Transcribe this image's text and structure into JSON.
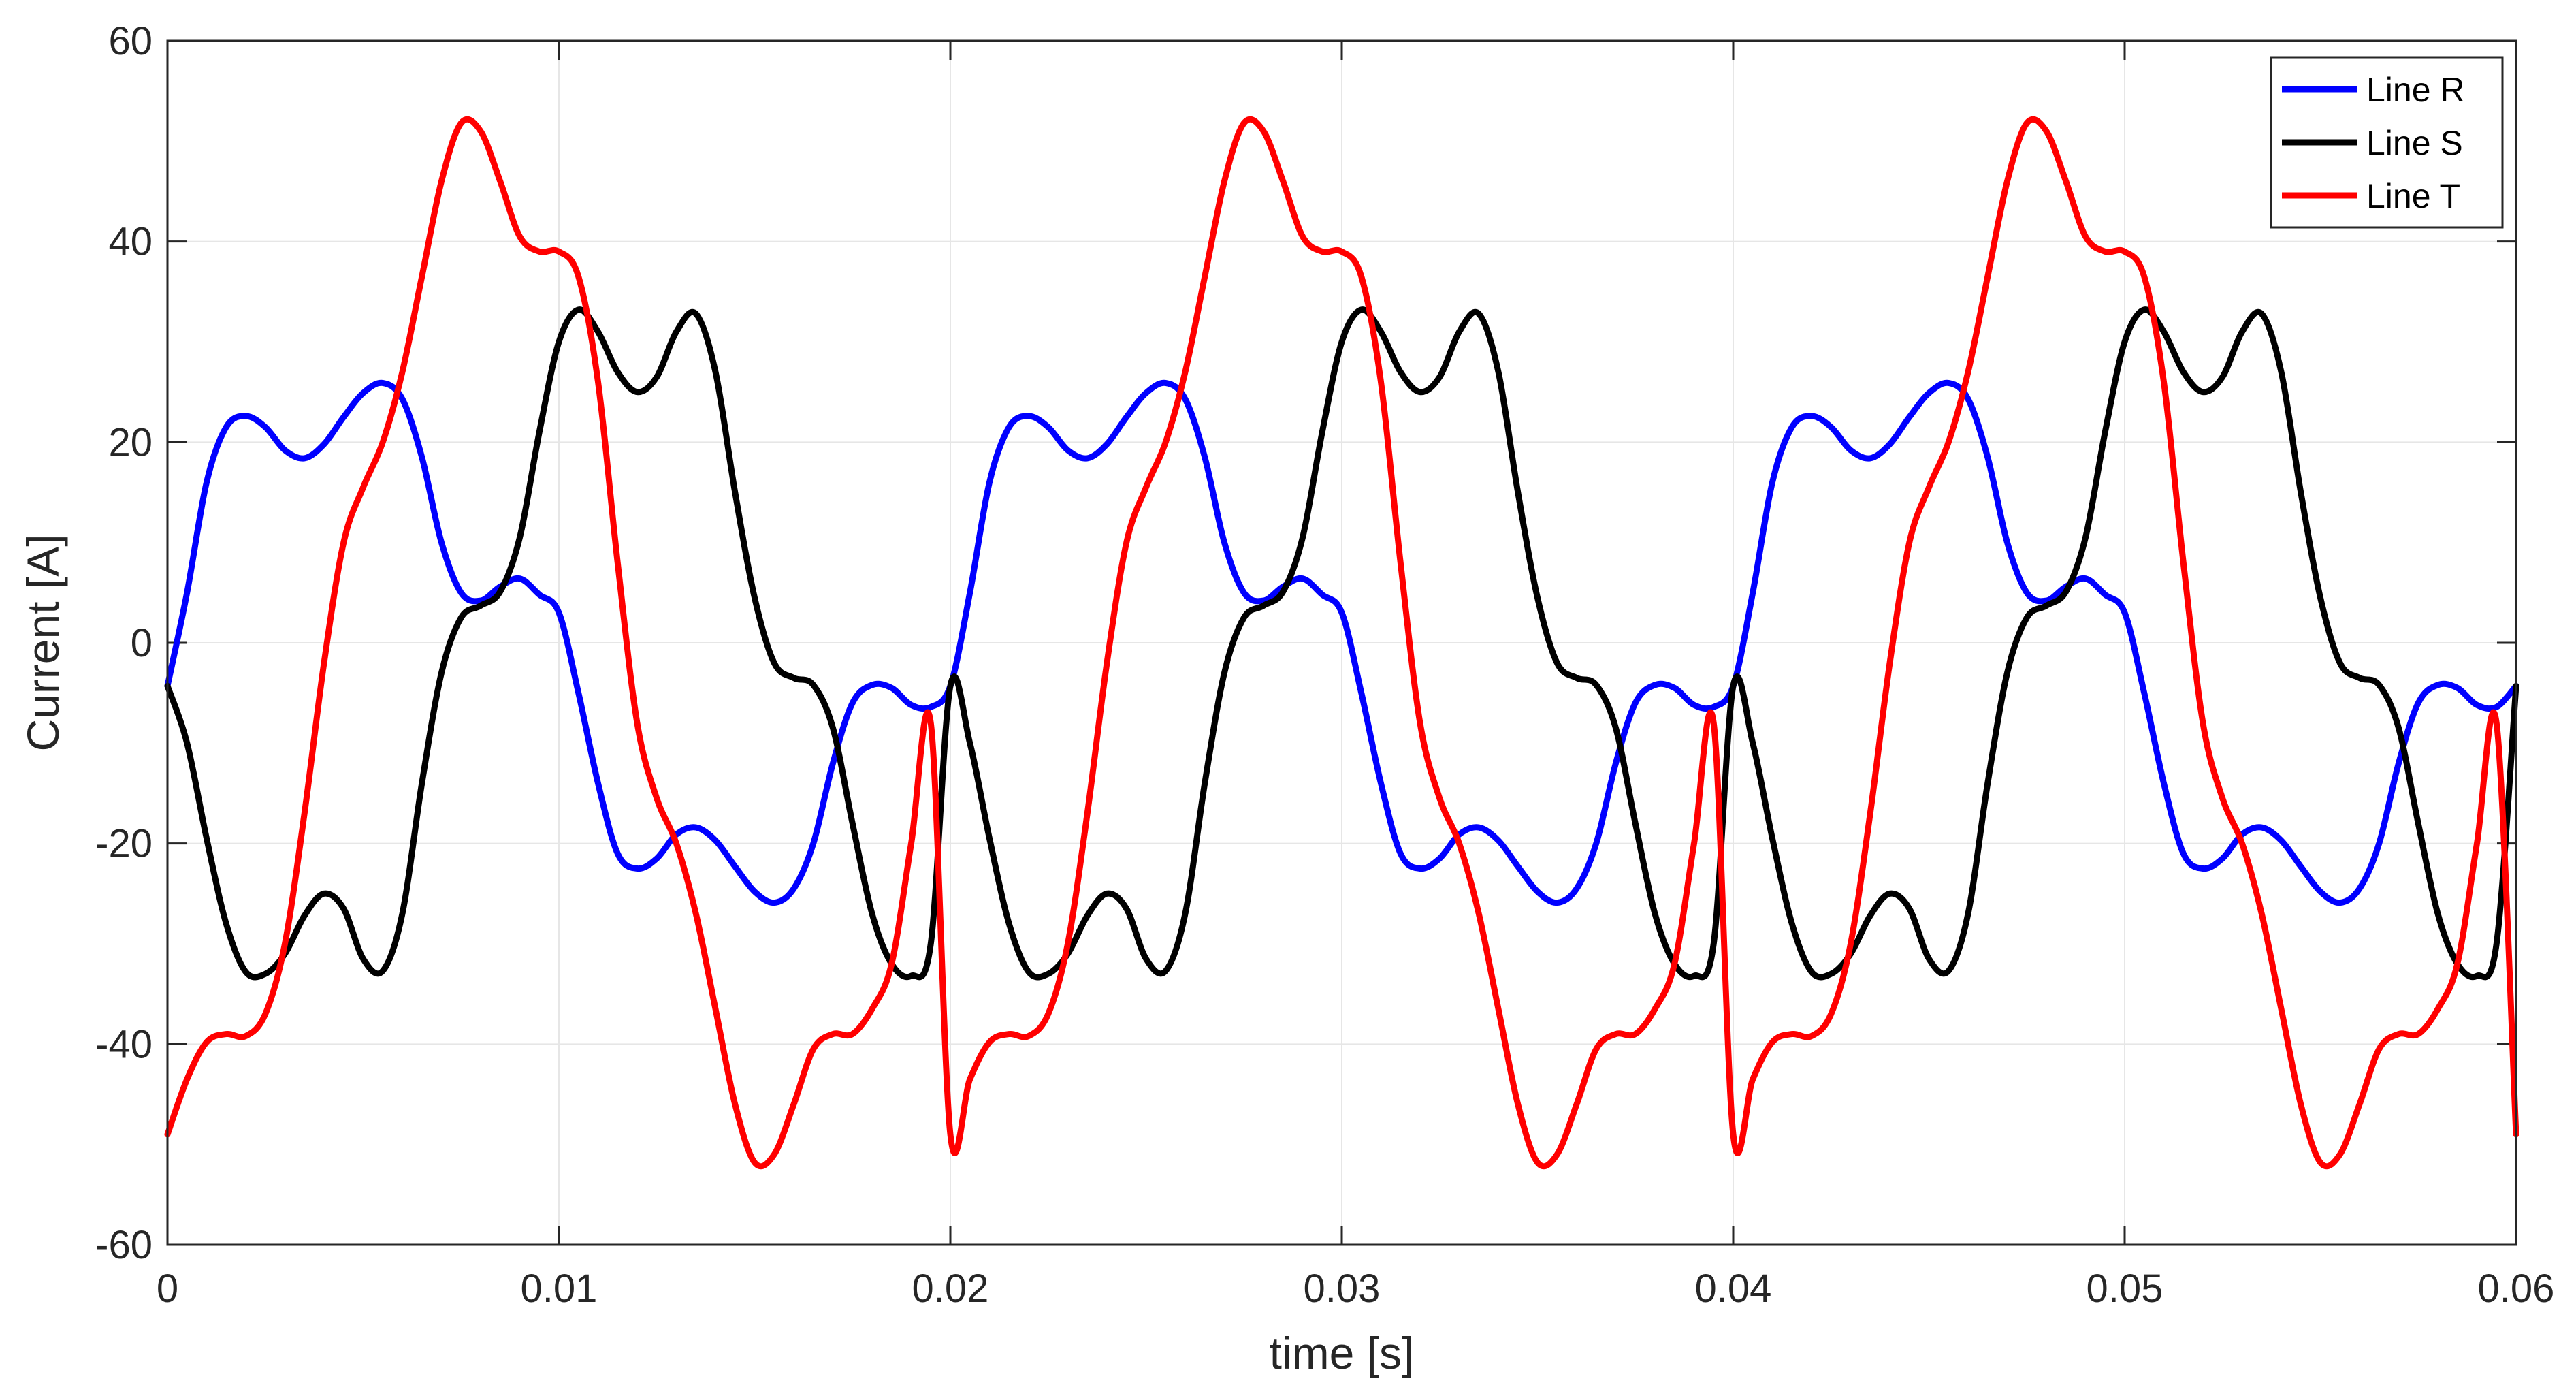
{
  "chart_data": {
    "type": "line",
    "xlabel": "time [s]",
    "ylabel": "Current [A]",
    "xlim": [
      0,
      0.06
    ],
    "ylim": [
      -60,
      60
    ],
    "xticks": [
      0,
      0.01,
      0.02,
      0.03,
      0.04,
      0.05,
      0.06
    ],
    "xtick_labels": [
      "0",
      "0.01",
      "0.02",
      "0.03",
      "0.04",
      "0.05",
      "0.06"
    ],
    "yticks": [
      -60,
      -40,
      -20,
      0,
      20,
      40,
      60
    ],
    "ytick_labels": [
      "-60",
      "-40",
      "-20",
      "0",
      "20",
      "40",
      "60"
    ],
    "grid": true,
    "legend_position": "top-right",
    "period": 0.02,
    "x": [
      0,
      0.0005,
      0.001,
      0.0015,
      0.002,
      0.0025,
      0.003,
      0.0035,
      0.004,
      0.0045,
      0.005,
      0.0055,
      0.006,
      0.0065,
      0.007,
      0.0075,
      0.008,
      0.0085,
      0.009,
      0.0095,
      0.01,
      0.0105,
      0.011,
      0.0115,
      0.012,
      0.0125,
      0.013,
      0.0135,
      0.014,
      0.0145,
      0.015,
      0.0155,
      0.016,
      0.0165,
      0.017,
      0.0175,
      0.018,
      0.0185,
      0.019,
      0.0195,
      0.02
    ],
    "series": [
      {
        "name": "Line R",
        "color": "#0000ff",
        "values": [
          -4.3,
          5,
          16,
          21.5,
          22.6,
          21.5,
          19.2,
          18.4,
          19.8,
          22.5,
          24.9,
          25.9,
          24.3,
          18.5,
          10,
          5,
          4.2,
          5.6,
          6.4,
          4.8,
          3,
          -5,
          -14,
          -21,
          -22.5,
          -21.5,
          -19.1,
          -18.4,
          -19.7,
          -22.3,
          -24.8,
          -25.9,
          -24.5,
          -20,
          -12,
          -6,
          -4.2,
          -4.5,
          -6.2,
          -6.4,
          -4.3
        ]
      },
      {
        "name": "Line S",
        "color": "#000000",
        "values": [
          -4.3,
          -10,
          -19.5,
          -28,
          -32.8,
          -33,
          -31,
          -27.2,
          -25,
          -26.5,
          -31.5,
          -32.7,
          -27,
          -14,
          -3,
          2.5,
          3.7,
          5.1,
          10.5,
          21,
          30,
          33.2,
          31,
          27,
          25,
          26.5,
          31,
          32.8,
          27,
          15,
          4.5,
          -2,
          -3.5,
          -4.2,
          -8.5,
          -18,
          -27,
          -32,
          -33.2,
          -30,
          -4.3
        ]
      },
      {
        "name": "Line T",
        "color": "#ff0000",
        "values": [
          -49,
          -43.5,
          -39.8,
          -39,
          -39.2,
          -37,
          -30,
          -17,
          -2,
          10,
          15.5,
          20,
          27,
          36.5,
          46,
          51.8,
          51,
          46,
          40.5,
          39,
          39,
          36.5,
          26,
          8,
          -8,
          -15.5,
          -20,
          -27,
          -36.5,
          -46,
          -51.8,
          -51,
          -46,
          -40.5,
          -39,
          -39,
          -36.5,
          -32,
          -20,
          -8,
          -49
        ]
      }
    ]
  }
}
